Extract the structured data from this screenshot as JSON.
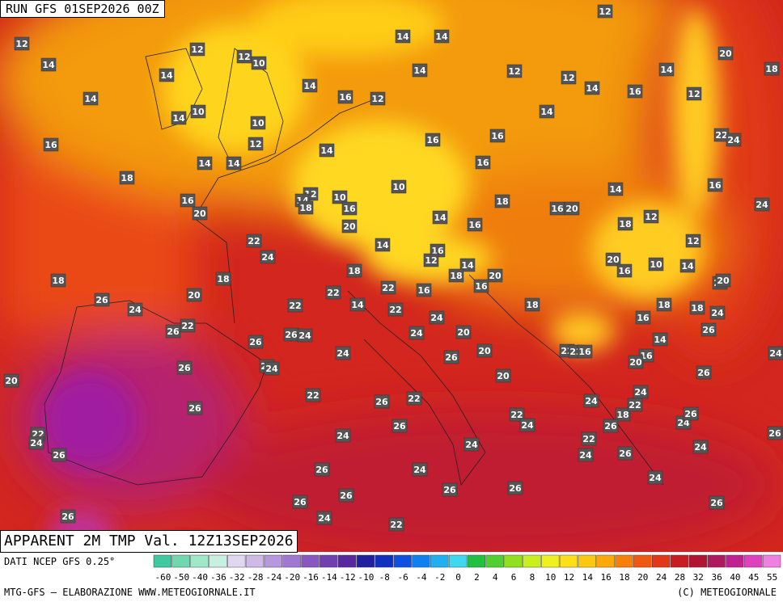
{
  "header": {
    "run": "RUN GFS 01SEP2026 00Z",
    "title": "APPARENT 2M TMP Val. 12Z13SEP2026"
  },
  "map_labels": [
    12,
    14,
    14,
    14,
    12,
    12,
    10,
    10,
    14,
    10,
    12,
    16,
    18,
    14,
    14,
    14,
    14,
    16,
    12,
    14,
    14,
    14,
    12,
    12,
    12,
    14,
    16,
    14,
    12,
    20,
    18,
    14,
    16,
    16,
    16,
    10,
    18,
    14,
    16,
    22,
    24,
    24,
    16,
    20,
    12,
    14,
    10,
    16,
    20,
    18,
    14,
    16,
    16,
    20,
    18,
    12,
    12,
    22,
    24,
    14,
    16,
    12,
    14,
    18,
    20,
    16,
    16,
    22,
    18,
    22,
    14,
    22,
    18,
    20,
    16,
    10,
    14,
    22,
    20,
    18,
    20,
    18,
    26,
    24,
    22,
    24,
    24,
    20,
    26,
    22,
    26,
    26,
    24,
    24,
    20,
    26,
    20,
    22,
    22,
    16,
    16,
    18,
    18,
    24,
    26,
    14,
    16,
    20,
    26,
    24,
    26,
    24,
    24,
    22,
    26,
    22,
    26,
    20,
    26,
    22,
    24,
    24,
    24,
    18,
    22,
    26,
    24,
    26,
    26,
    22,
    24,
    26,
    24,
    24,
    22,
    24,
    26,
    24,
    26,
    24,
    26,
    26,
    24,
    26,
    26,
    24,
    26,
    26,
    22
  ],
  "footer": {
    "source": "DATI NCEP GFS 0.25°",
    "credit": "MTG-GFS — ELABORAZIONE WWW.METEOGIORNALE.IT",
    "copyright": "(C) METEOGIORNALE"
  },
  "scale_labels": [
    -60,
    -50,
    -40,
    -36,
    -32,
    -28,
    -24,
    -20,
    -16,
    -14,
    -12,
    -10,
    -8,
    -6,
    -4,
    -2,
    0,
    2,
    4,
    6,
    8,
    10,
    12,
    14,
    16,
    18,
    20,
    24,
    28,
    32,
    36,
    40,
    45,
    55
  ]
}
